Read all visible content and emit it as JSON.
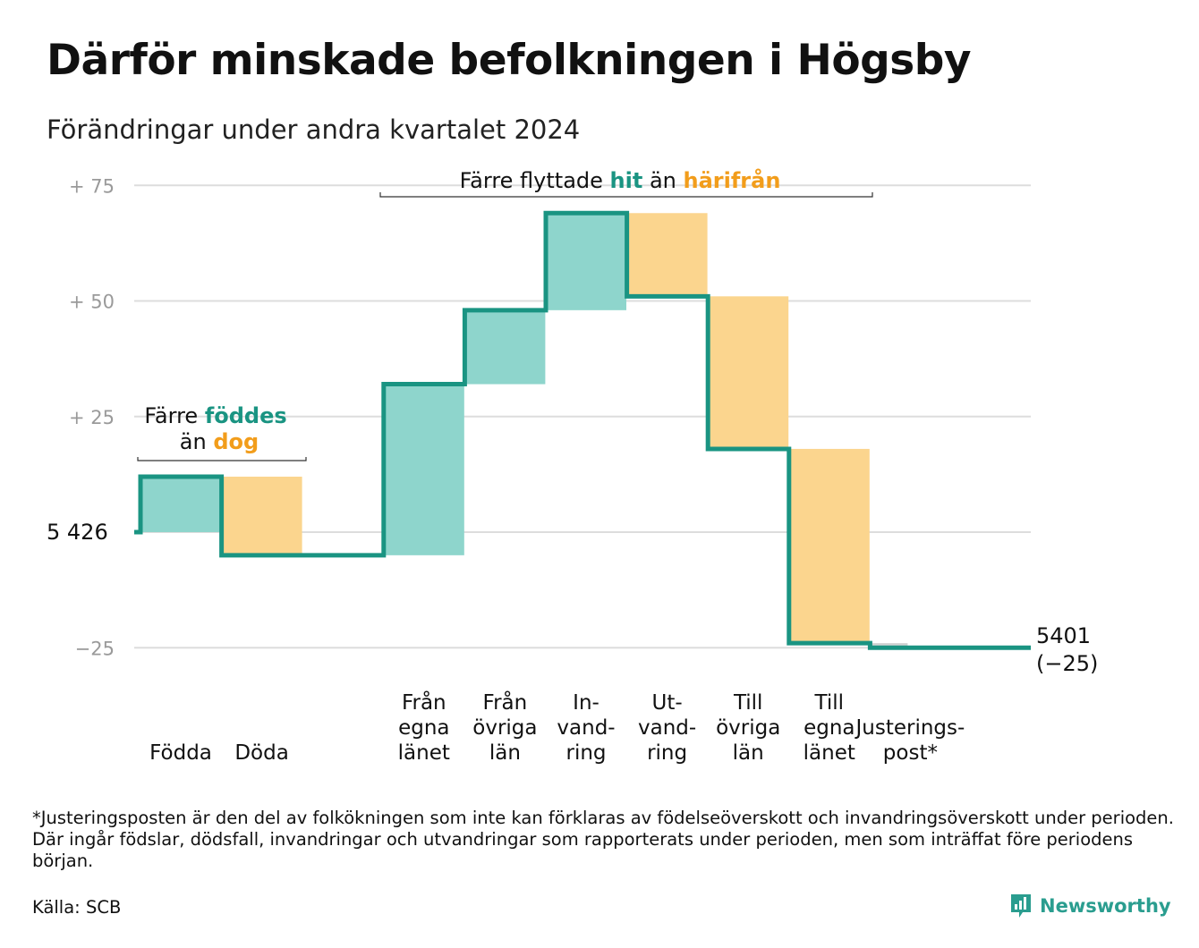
{
  "title": "Därför minskade befolkningen i Högsby",
  "subtitle": "Förändringar under andra kvartalet 2024",
  "chart_data": {
    "type": "waterfall",
    "start_value": 5426,
    "start_label": "5  426",
    "end_value": 5401,
    "end_label": "5 401",
    "end_change_label": "(−25)",
    "y_ticks": [
      {
        "value": 75,
        "label": "+  75"
      },
      {
        "value": 50,
        "label": "+  50"
      },
      {
        "value": 25,
        "label": "+  25"
      },
      {
        "value": -25,
        "label": "−25"
      }
    ],
    "ylim": [
      -25,
      75
    ],
    "steps": [
      {
        "label": [
          "Födda"
        ],
        "change": 12,
        "kind": "in"
      },
      {
        "label": [
          "Döda"
        ],
        "change": -17,
        "kind": "out"
      },
      {
        "label": [],
        "change": 0,
        "kind": "gap"
      },
      {
        "label": [
          "Från",
          "egna",
          "länet"
        ],
        "change": 37,
        "kind": "in"
      },
      {
        "label": [
          "Från",
          "övriga",
          "län"
        ],
        "change": 16,
        "kind": "in"
      },
      {
        "label": [
          "In-",
          "vand-",
          "ring"
        ],
        "change": 21,
        "kind": "in"
      },
      {
        "label": [
          "Ut-",
          "vand-",
          "ring"
        ],
        "change": -18,
        "kind": "out"
      },
      {
        "label": [
          "Till",
          "övriga",
          "län"
        ],
        "change": -33,
        "kind": "out"
      },
      {
        "label": [
          "Till",
          "egna",
          "länet"
        ],
        "change": -42,
        "kind": "out"
      },
      {
        "label": [
          "Justerings-",
          "post*"
        ],
        "change": -1,
        "kind": "adjust"
      }
    ],
    "annotations": {
      "births": {
        "line1_a": "Färre ",
        "line1_b": "föddes",
        "line2_a": "än ",
        "line2_b": "dog"
      },
      "migration": {
        "a": "Färre flyttade ",
        "b": "hit",
        "c": " än ",
        "d": "härifrån"
      }
    },
    "colors": {
      "line": "#1a9482",
      "increase": "#8ed5cc",
      "decrease": "#fbd58e",
      "adjust": "#d3d3d3",
      "grid": "#dddddd",
      "highlight_in": "#1a9482",
      "highlight_out": "#f29d1b"
    }
  },
  "footnote": "*Justeringsposten är den del av folkökningen som inte kan förklaras av födelseöverskott och invandringsöverskott under perioden. Där ingår födslar, dödsfall, invandringar och utvandringar som rapporterats under perioden, men som inträffat före periodens början.",
  "source": "Källa: SCB",
  "brand": {
    "name": "Newsworthy",
    "icon": "newsworthy-logo-icon"
  }
}
